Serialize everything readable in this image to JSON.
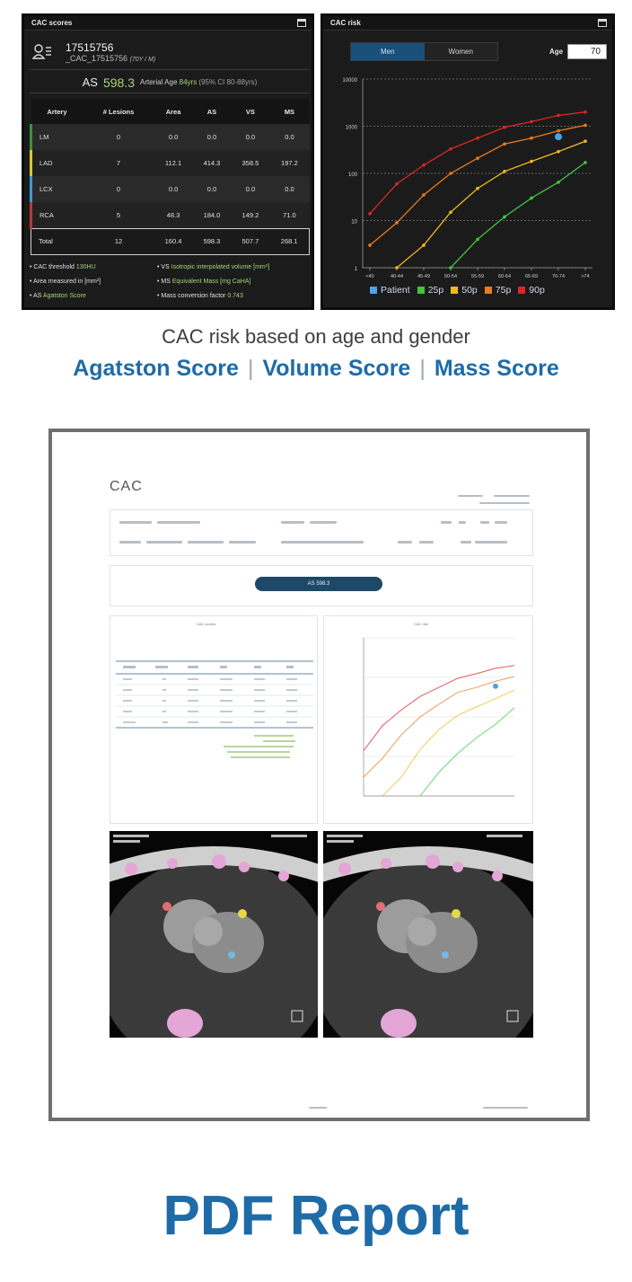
{
  "scores_panel": {
    "title": "CAC scores",
    "patient_id": "17515756",
    "patient_name": "_CAC_17515756",
    "patient_meta": "(70Y / M)",
    "as_label": "AS",
    "as_value": "598.3",
    "arterial_age_label": "Arterial Age",
    "arterial_age_value": "84yrs",
    "arterial_age_ci": "(95% CI 80-88yrs)",
    "columns": [
      "Artery",
      "# Lesions",
      "Area",
      "AS",
      "VS",
      "MS"
    ],
    "rows": [
      {
        "artery": "LM",
        "lesions": "0",
        "area": "0.0",
        "as": "0.0",
        "vs": "0.0",
        "ms": "0.0",
        "color": "#3f8f3f"
      },
      {
        "artery": "LAD",
        "lesions": "7",
        "area": "112.1",
        "as": "414.3",
        "vs": "358.5",
        "ms": "197.2",
        "color": "#d8c53a"
      },
      {
        "artery": "LCX",
        "lesions": "0",
        "area": "0.0",
        "as": "0.0",
        "vs": "0.0",
        "ms": "0.0",
        "color": "#3b9ad1"
      },
      {
        "artery": "RCA",
        "lesions": "5",
        "area": "48.3",
        "as": "184.0",
        "vs": "149.2",
        "ms": "71.0",
        "color": "#b53a3a"
      }
    ],
    "total": {
      "artery": "Total",
      "lesions": "12",
      "area": "160.4",
      "as": "598.3",
      "vs": "507.7",
      "ms": "268.1"
    },
    "notes": {
      "cac_threshold_label": "• CAC threshold",
      "cac_threshold_value": "130HU",
      "area_label": "• Area measured in [mm²]",
      "as_note_label": "• AS",
      "as_note_value": "Agatston Score",
      "vs_label": "• VS",
      "vs_value": "Isotropic interpolated volume [mm³]",
      "ms_label": "• MS",
      "ms_value": "Equivalent Mass [mg CaHA]",
      "mass_label": "• Mass conversion factor",
      "mass_value": "0.743"
    }
  },
  "risk_panel": {
    "title": "CAC risk",
    "tab_men": "Men",
    "tab_women": "Women",
    "age_label": "Age",
    "age_value": "70",
    "legend": [
      {
        "label": "Patient",
        "color": "#4aa3e8"
      },
      {
        "label": "25p",
        "color": "#3ec63e"
      },
      {
        "label": "50p",
        "color": "#f0b91e"
      },
      {
        "label": "75p",
        "color": "#ec7a1c"
      },
      {
        "label": "90p",
        "color": "#dc2626"
      }
    ]
  },
  "chart_data": {
    "type": "line",
    "title": "CAC risk",
    "xlabel": "",
    "ylabel": "",
    "y_scale": "log",
    "ylim": [
      1,
      10000
    ],
    "y_ticks": [
      "1",
      "10",
      "100",
      "1000",
      "10000"
    ],
    "categories": [
      "<40",
      "40-44",
      "45-49",
      "50-54",
      "55-59",
      "60-64",
      "65-69",
      "70-74",
      ">74"
    ],
    "series": [
      {
        "name": "25p",
        "color": "#3ec63e",
        "values": [
          null,
          null,
          null,
          1,
          4,
          12,
          30,
          65,
          170
        ]
      },
      {
        "name": "50p",
        "color": "#f0b91e",
        "values": [
          null,
          1,
          3,
          15,
          48,
          110,
          180,
          290,
          480
        ]
      },
      {
        "name": "75p",
        "color": "#ec7a1c",
        "values": [
          3,
          9,
          35,
          100,
          210,
          420,
          560,
          800,
          1050
        ]
      },
      {
        "name": "90p",
        "color": "#dc2626",
        "values": [
          14,
          60,
          150,
          330,
          560,
          950,
          1250,
          1700,
          2000
        ]
      }
    ],
    "patient": {
      "name": "Patient",
      "x": "70-74",
      "y": 598.3,
      "color": "#4aa3e8"
    },
    "grid": true,
    "legend_position": "bottom"
  },
  "captions": {
    "line1": "CAC risk based on age and gender",
    "agatston": "Agatston Score",
    "separator": "|",
    "volume": "Volume Score",
    "mass": "Mass Score"
  },
  "report": {
    "title": "CAC",
    "as_pill": "AS 598.3",
    "scores_box_title": "CAC scores",
    "risk_box_title": "CAC risk"
  },
  "pdf_title": "PDF Report"
}
